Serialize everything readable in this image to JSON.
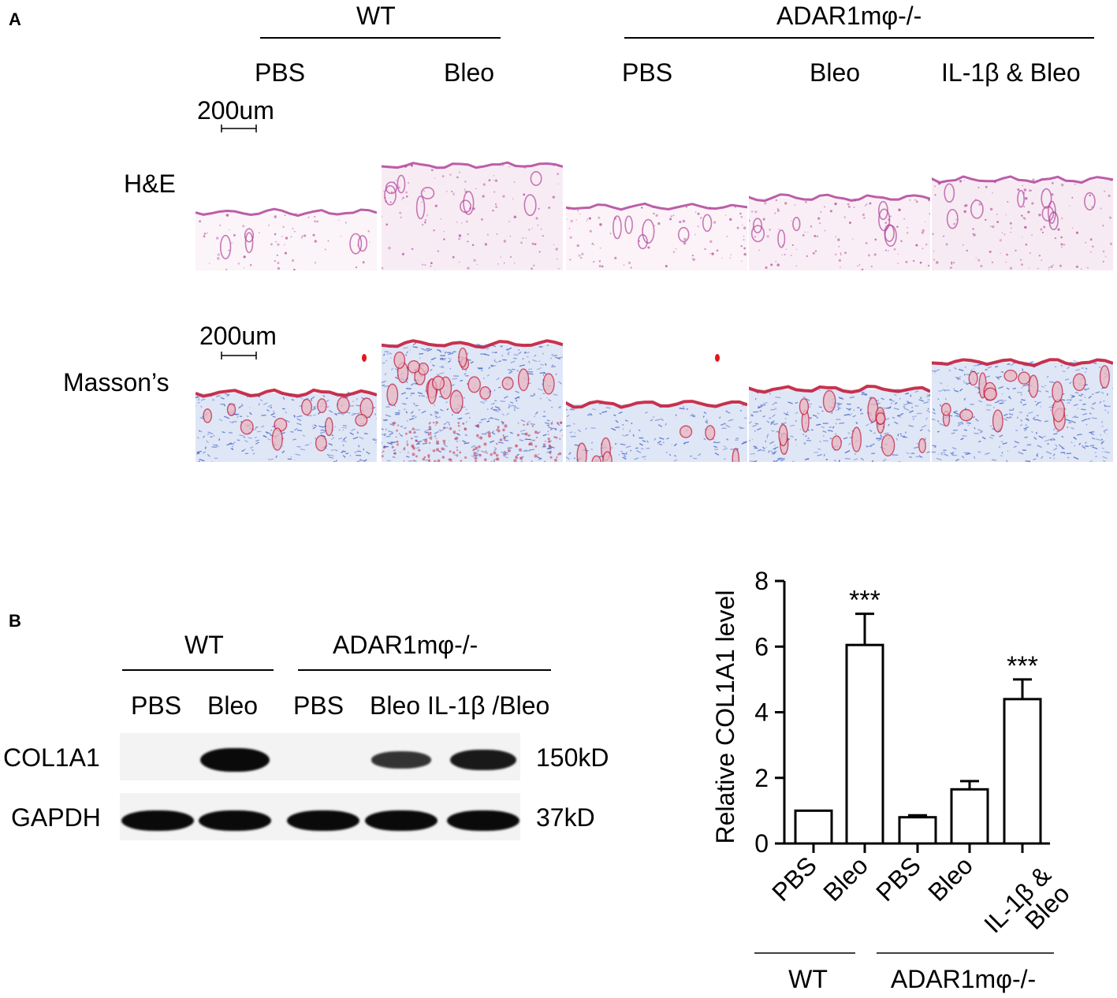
{
  "panelA": {
    "letter": "A",
    "group_wt": "WT",
    "group_ko": "ADAR1mφ-/-",
    "conditions": [
      "PBS",
      "Bleo",
      "PBS",
      "Bleo",
      "IL-1β & Bleo"
    ],
    "row_he": "H&E",
    "row_masson": "Masson’s",
    "scale_bar": "200um",
    "colors": {
      "he_stain": "#b0439a",
      "masson_blue": "#3f62c4",
      "masson_red": "#c21d3c"
    }
  },
  "panelB": {
    "letter": "B",
    "blot": {
      "group_wt": "WT",
      "group_ko": "ADAR1mφ-/-",
      "lane_label_1": "PBS",
      "lane_label_2": "Bleo",
      "lane_label_3": "PBS",
      "lane_label_4": "Bleo IL-1β /Bleo",
      "rows": [
        {
          "protein": "COL1A1",
          "size": "150kD",
          "band_intensity": [
            0,
            1,
            0,
            0.6,
            0.85
          ]
        },
        {
          "protein": "GAPDH",
          "size": "37kD",
          "band_intensity": [
            1,
            1,
            1,
            1,
            1
          ]
        }
      ]
    }
  },
  "chart_data": {
    "type": "bar",
    "categories": [
      "PBS",
      "Bleo",
      "PBS",
      "Bleo",
      "IL-1β & Bleo"
    ],
    "values": [
      1.0,
      6.05,
      0.8,
      1.65,
      4.4
    ],
    "errors": [
      0,
      0.95,
      0.06,
      0.25,
      0.6
    ],
    "significance": [
      "",
      "***",
      "",
      "",
      "***"
    ],
    "ylabel": "Relative COL1A1 level",
    "ylim": [
      0,
      8
    ],
    "yticks": [
      0,
      2,
      4,
      6,
      8
    ],
    "group_wt": "WT",
    "group_ko": "ADAR1mφ-/-",
    "grid": false
  }
}
